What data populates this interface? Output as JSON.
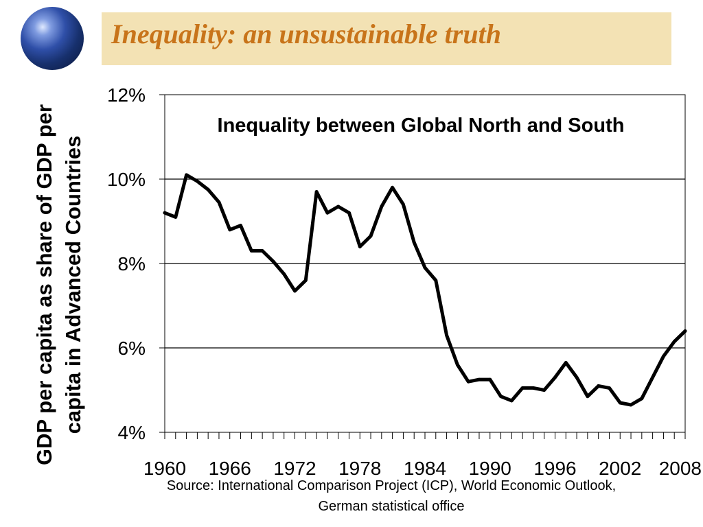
{
  "slide": {
    "title": "Inequality: an unsustainable truth",
    "source_line1": "Source: International Comparison Project (ICP), World Economic Outlook,",
    "source_line2": "German statistical office"
  },
  "chart_data": {
    "type": "line",
    "title": "Inequality between Global North and South",
    "ylabel": "GDP per capita as share of GDP per capita in Advanced Countries",
    "xlabel": "",
    "ylim": [
      4,
      12
    ],
    "yticks": [
      "4%",
      "6%",
      "8%",
      "10%",
      "12%"
    ],
    "ytick_values": [
      4,
      6,
      8,
      10,
      12
    ],
    "xlim": [
      1960,
      2008
    ],
    "xtick_labels": [
      "1960",
      "1966",
      "1972",
      "1978",
      "1984",
      "1990",
      "1996",
      "2002",
      "2008"
    ],
    "xtick_values": [
      1960,
      1966,
      1972,
      1978,
      1984,
      1990,
      1996,
      2002,
      2008
    ],
    "grid": "horizontal",
    "colors": {
      "line": "#000000",
      "banner": "#f3e2b4",
      "title": "#c8741a"
    },
    "x": [
      1960,
      1961,
      1962,
      1963,
      1964,
      1965,
      1966,
      1967,
      1968,
      1969,
      1970,
      1971,
      1972,
      1973,
      1974,
      1975,
      1976,
      1977,
      1978,
      1979,
      1980,
      1981,
      1982,
      1983,
      1984,
      1985,
      1986,
      1987,
      1988,
      1989,
      1990,
      1991,
      1992,
      1993,
      1994,
      1995,
      1996,
      1997,
      1998,
      1999,
      2000,
      2001,
      2002,
      2003,
      2004,
      2005,
      2006,
      2007,
      2008
    ],
    "y": [
      9.2,
      9.1,
      10.1,
      9.95,
      9.75,
      9.45,
      8.8,
      8.9,
      8.3,
      8.3,
      8.05,
      7.75,
      7.35,
      7.6,
      9.7,
      9.2,
      9.35,
      9.2,
      8.4,
      8.65,
      9.35,
      9.8,
      9.4,
      8.5,
      7.9,
      7.6,
      6.3,
      5.6,
      5.2,
      5.25,
      5.25,
      4.85,
      4.75,
      5.05,
      5.05,
      5.0,
      5.3,
      5.65,
      5.3,
      4.85,
      5.1,
      5.05,
      4.7,
      4.65,
      4.8,
      5.3,
      5.8,
      6.15,
      6.4
    ]
  }
}
